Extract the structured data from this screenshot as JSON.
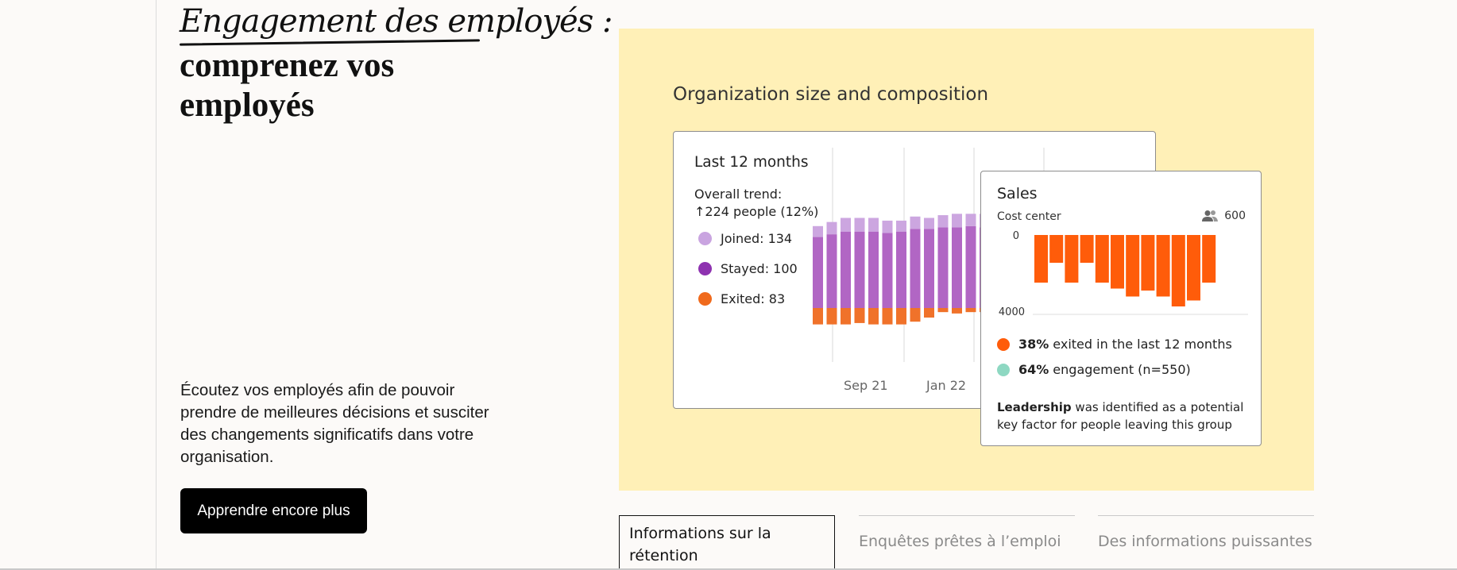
{
  "hero": {
    "eyebrow": "Engagement des employés :",
    "headline": "comprenez vos employés",
    "description": "Écoutez vos employés afin de pouvoir prendre de meilleures décisions et susciter des changements significatifs dans votre organisation.",
    "cta_label": "Apprendre encore plus"
  },
  "panel": {
    "title": "Organization size and composition",
    "bg_color": "#fff0b7"
  },
  "main_card": {
    "title": "Last 12 months",
    "trend_line1": "Overall trend:",
    "trend_line2": "↑224 people (12%)",
    "legend": [
      {
        "label": "Joined: 134",
        "color": "#c9a4e0"
      },
      {
        "label": "Stayed: 100",
        "color": "#8e32b0"
      },
      {
        "label": "Exited: 83",
        "color": "#f06a1c"
      }
    ],
    "x_tick_labels": [
      "Sep 21",
      "Jan 22"
    ]
  },
  "sales_card": {
    "title": "Sales",
    "subtitle": "Cost center",
    "people_count": "600",
    "stats": [
      {
        "value": "38%",
        "text": "exited in the last 12 months",
        "color": "#ff5c0a"
      },
      {
        "value": "64%",
        "text": "engagement (n=550)",
        "color": "#8ed8c2"
      }
    ],
    "note_bold": "Leadership",
    "note_rest": " was identified as a potential key factor for people leaving this group"
  },
  "chart_data": [
    {
      "type": "bar",
      "stacked": true,
      "series": [
        {
          "name": "Joined",
          "values": [
            8,
            9,
            10,
            10,
            10,
            9,
            8,
            9,
            8,
            9,
            10,
            9,
            10,
            8,
            9,
            10
          ]
        },
        {
          "name": "Stayed",
          "values": [
            52,
            54,
            56,
            56,
            56,
            55,
            56,
            58,
            58,
            59,
            59,
            60,
            59,
            58,
            59,
            60
          ]
        },
        {
          "name": "Exited",
          "values": [
            -12,
            -12,
            -12,
            -11,
            -12,
            -12,
            -12,
            -10,
            -7,
            -3,
            -4,
            -3,
            -3,
            -4,
            -5,
            -6
          ]
        }
      ],
      "x_ticks": [
        "Sep 21",
        "Jan 22"
      ],
      "grid": true
    },
    {
      "type": "bar",
      "title": "Sales",
      "y_ticks": [
        0,
        4000
      ],
      "values": [
        2400,
        1400,
        2400,
        1400,
        2400,
        2700,
        3100,
        2800,
        3100,
        3600,
        3300,
        2400
      ],
      "ylim": [
        0,
        4000
      ],
      "color": "#ff5c0a"
    }
  ]
}
